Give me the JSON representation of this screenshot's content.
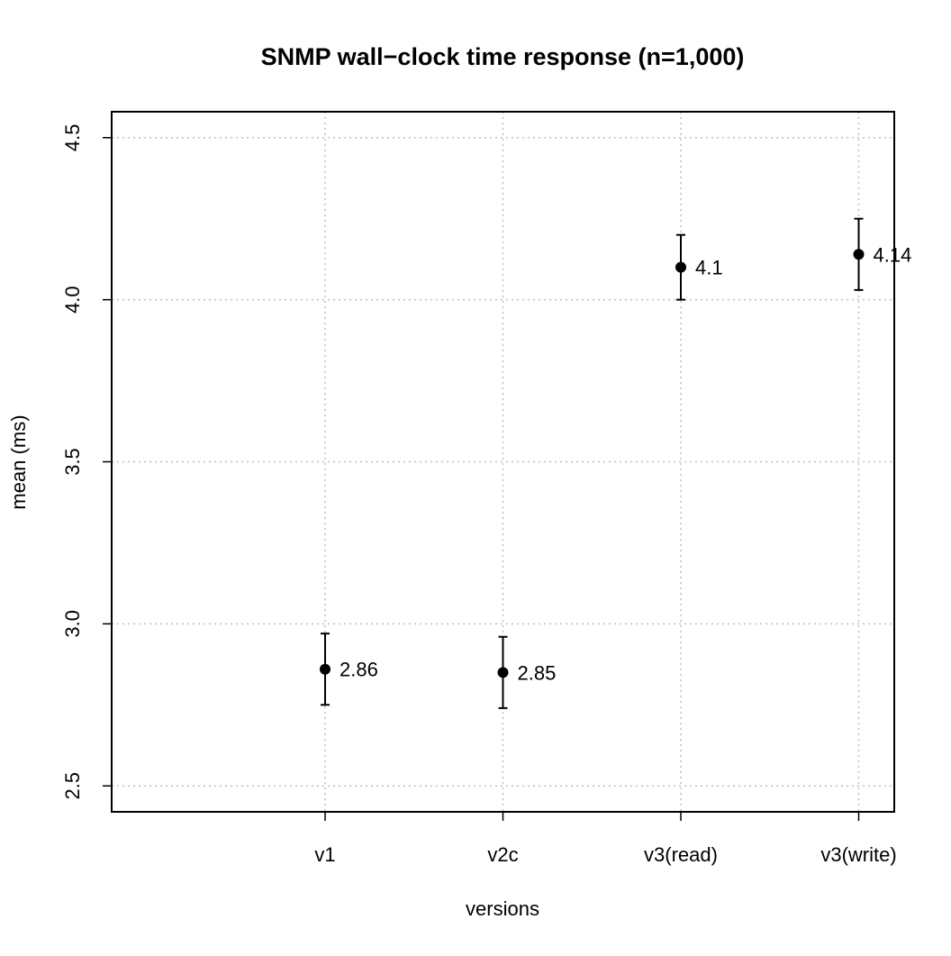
{
  "chart_data": {
    "type": "scatter",
    "title": "SNMP wall−clock time response (n=1,000)",
    "xlabel": "versions",
    "ylabel": "mean (ms)",
    "categories": [
      "v1",
      "v2c",
      "v3(read)",
      "v3(write)"
    ],
    "values": [
      2.86,
      2.85,
      4.1,
      4.14
    ],
    "value_labels": [
      "2.86",
      "2.85",
      "4.1",
      "4.14"
    ],
    "error_bars": [
      {
        "low": 2.75,
        "high": 2.97
      },
      {
        "low": 2.74,
        "high": 2.96
      },
      {
        "low": 4.0,
        "high": 4.2
      },
      {
        "low": 4.03,
        "high": 4.25
      }
    ],
    "ylim": [
      2.42,
      4.58
    ],
    "xlim": [
      -0.2,
      4.2
    ],
    "yticks": [
      2.5,
      3.0,
      3.5,
      4.0,
      4.5
    ],
    "ytick_labels": [
      "2.5",
      "3.0",
      "3.5",
      "4.0",
      "4.5"
    ],
    "grid": true,
    "colors": {
      "points": "#000000",
      "grid": "#bfbfbf",
      "frame": "#000000"
    }
  }
}
